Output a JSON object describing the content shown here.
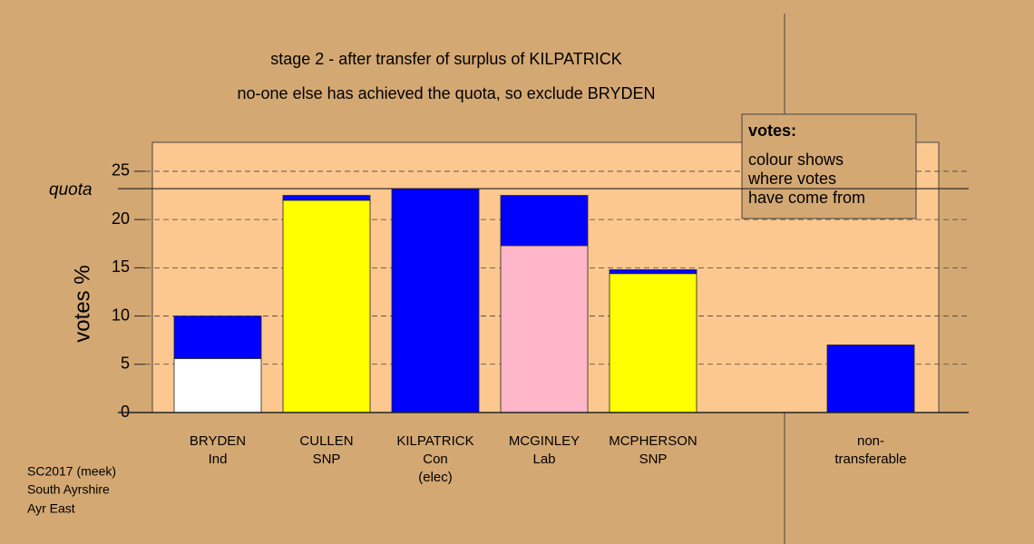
{
  "chart_data": {
    "type": "stacked_bar",
    "title": "stage 2 - after transfer of surplus of KILPATRICK",
    "subtitle": "no-one else has achieved the quota, so exclude BRYDEN",
    "y_label": "votes %",
    "categories": [
      [
        "BRYDEN",
        "Ind"
      ],
      [
        "CULLEN",
        "SNP"
      ],
      [
        "KILPATRICK",
        "Con",
        "(elec)"
      ],
      [
        "MCGINLEY",
        "Lab"
      ],
      [
        "MCPHERSON",
        "SNP"
      ],
      null,
      [
        "non-",
        "transferable"
      ]
    ],
    "series": [
      {
        "colors": [
          "#ffffff",
          "#ffff00",
          "#0000ff",
          "#ffb6c8",
          "#ffff00",
          null,
          null
        ],
        "values": [
          5.6,
          22.0,
          23.2,
          17.3,
          14.4,
          null,
          null
        ]
      },
      {
        "color": "#0000ff",
        "values": [
          4.4,
          0.5,
          0,
          5.2,
          0.4,
          null,
          7.0
        ]
      }
    ],
    "ylim": [
      0,
      28
    ],
    "yticks": [
      0,
      5,
      10,
      15,
      20,
      25
    ],
    "grid": true,
    "quota": {
      "label": "quota",
      "value": 23.2
    },
    "legend": {
      "title": "votes:",
      "lines": [
        "colour shows",
        "where votes",
        "have come from"
      ]
    },
    "footer": [
      "SC2017 (meek)",
      "South Ayrshire",
      "Ayr East"
    ]
  }
}
